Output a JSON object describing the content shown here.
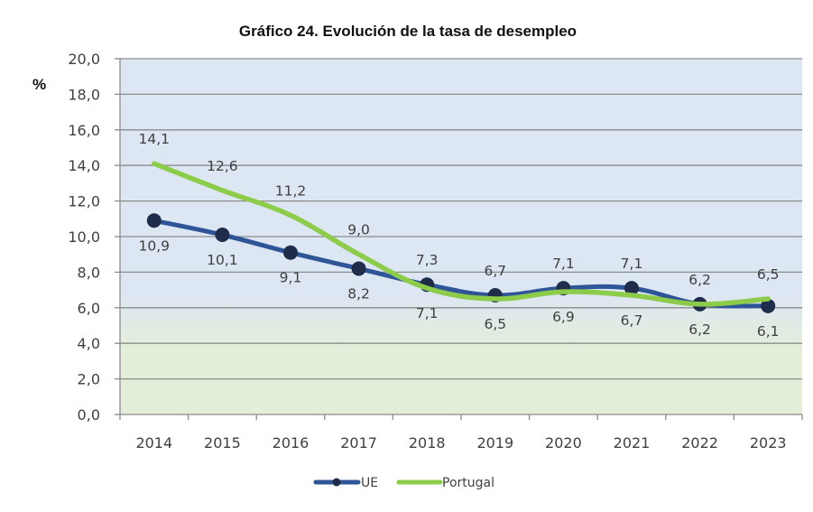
{
  "chart_data": {
    "type": "line",
    "title": "Gráfico 24. Evolución de la tasa de desempleo",
    "ylabel": "%",
    "xlabel": "",
    "categories": [
      "2014",
      "2015",
      "2016",
      "2017",
      "2018",
      "2019",
      "2020",
      "2021",
      "2022",
      "2023"
    ],
    "ylim": [
      0,
      20
    ],
    "ytick_step": 2,
    "yticks": [
      "0,0",
      "2,0",
      "4,0",
      "6,0",
      "8,0",
      "10,0",
      "12,0",
      "14,0",
      "16,0",
      "18,0",
      "20,0"
    ],
    "grid": true,
    "legend_position": "bottom",
    "series": [
      {
        "name": "UE",
        "color": "#2e5596",
        "marker": "circle",
        "marker_color": "#1f2d4a",
        "smooth": true,
        "values": [
          10.9,
          10.1,
          9.1,
          8.2,
          7.3,
          6.7,
          7.1,
          7.1,
          6.2,
          6.1
        ],
        "labels": [
          "10,9",
          "10,1",
          "9,1",
          "8,2",
          "7,3",
          "6,7",
          "7,1",
          "7,1",
          "6,2",
          "6,1"
        ],
        "label_side": [
          "below",
          "below",
          "below",
          "below",
          "above",
          "above",
          "above",
          "above",
          "above",
          "below"
        ]
      },
      {
        "name": "Portugal",
        "color": "#8ccc4a",
        "marker": "none",
        "smooth": true,
        "values": [
          14.1,
          12.6,
          11.2,
          9.0,
          7.1,
          6.5,
          6.9,
          6.7,
          6.2,
          6.5
        ],
        "labels": [
          "14,1",
          "12,6",
          "11,2",
          "9,0",
          "7,1",
          "6,5",
          "6,9",
          "6,7",
          "6,2",
          "6,5"
        ],
        "label_side": [
          "above",
          "above",
          "above",
          "above",
          "below",
          "below",
          "below",
          "below",
          "below",
          "above"
        ]
      }
    ],
    "background": {
      "top_color": "#dde6f3",
      "bottom_color": "#e3efd9"
    }
  }
}
